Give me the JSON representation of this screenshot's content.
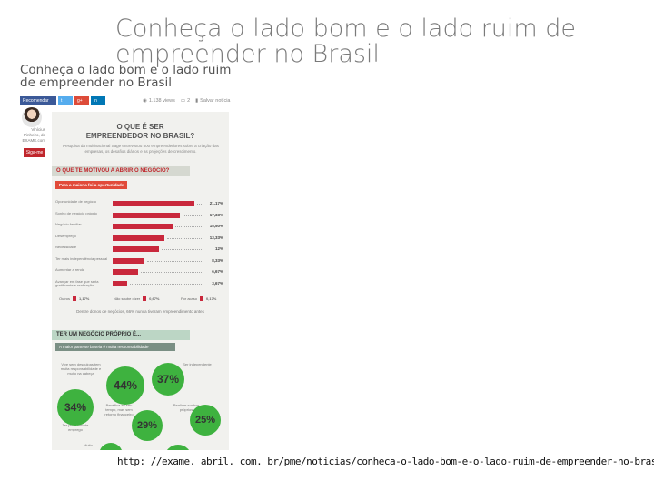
{
  "slide_title": "Conheça o lado bom e o lado ruim de empreender no Brasil",
  "article": {
    "title": "Conheça o lado bom e o lado ruim de empreender no Brasil",
    "share": {
      "recomendar": "Recomendar",
      "twitter": "t",
      "gplus": "g+",
      "linkedin": "in"
    },
    "meta": {
      "views": "1.138 views",
      "comments": "2",
      "save": "Salvar notícia"
    },
    "author": {
      "line1": "Vinícius",
      "line2": "Pinheiro, de",
      "line3": "EXAME.com"
    },
    "follow_label": "Siga-me"
  },
  "infographic": {
    "heading_line1": "O QUE É SER",
    "heading_line2": "EMPREENDEDOR NO BRASIL?",
    "intro": "Pesquisa da multinacional Sage entrevistou 500 empreendedores sobre a criação das empresas, os desafios diários e as projeções de crescimento.",
    "section1": "O QUE TE MOTIVOU A ABRIR O NEGÓCIO?",
    "section1_tag": "Para a maioria foi a oportunidade",
    "footer_items": [
      {
        "label": "Outros",
        "value": "1,17%"
      },
      {
        "label": "Não soube dizer",
        "value": "0,67%"
      },
      {
        "label": "Por acaso",
        "value": "0,17%"
      }
    ],
    "footer_note": "Dentre donos de negócios, 66% nunca tiveram empreendimento antes",
    "section2": "TER UM NEGÓCIO PRÓPRIO É...",
    "section2_tag": "A maior parte se baseia é muita responsabilidade",
    "bubble_labels": {
      "responsabilidade": "Vive sem desculpas tem muita responsabilidade e muito na cabeça",
      "independente": "Ser independente",
      "proposito": "Ter propósito de emprego",
      "benefica": "Benéfica ao seu tempo, mas sem retorno financeiro",
      "sonhos": "Realizar sonhos próprios",
      "muito": "Muito"
    },
    "colors": {
      "red_bar": "#c9283c",
      "green_bubble": "#3eb23f",
      "section_bg": "#d5d8d0"
    }
  },
  "chart_data": {
    "type": "bar",
    "title": "O QUE TE MOTIVOU A ABRIR O NEGÓCIO?",
    "categories": [
      "Oportunidade de negócio",
      "Sonho de negócio próprio",
      "Negócio familiar",
      "Desemprego",
      "Necessidade",
      "Ter mais independência pessoal",
      "Aumentar a renda",
      "Avançar em fase que seria gratificante e realização"
    ],
    "values": [
      21.17,
      17.33,
      15.5,
      13.33,
      12,
      8.33,
      6.67,
      3.67
    ],
    "value_labels": [
      "21,17%",
      "17,33%",
      "15,50%",
      "13,33%",
      "12%",
      "8,33%",
      "6,67%",
      "3,67%"
    ],
    "max_value": 21.17
  },
  "bubbles": [
    {
      "label": "44%",
      "value": 44
    },
    {
      "label": "37%",
      "value": 37
    },
    {
      "label": "34%",
      "value": 34
    },
    {
      "label": "29%",
      "value": 29
    },
    {
      "label": "25%",
      "value": 25
    }
  ],
  "url_caption": "http: //exame. abril. com. br/pme/noticias/conheca-o-lado-bom-e-o-lado-ruim-de-empreender-no-brasil"
}
